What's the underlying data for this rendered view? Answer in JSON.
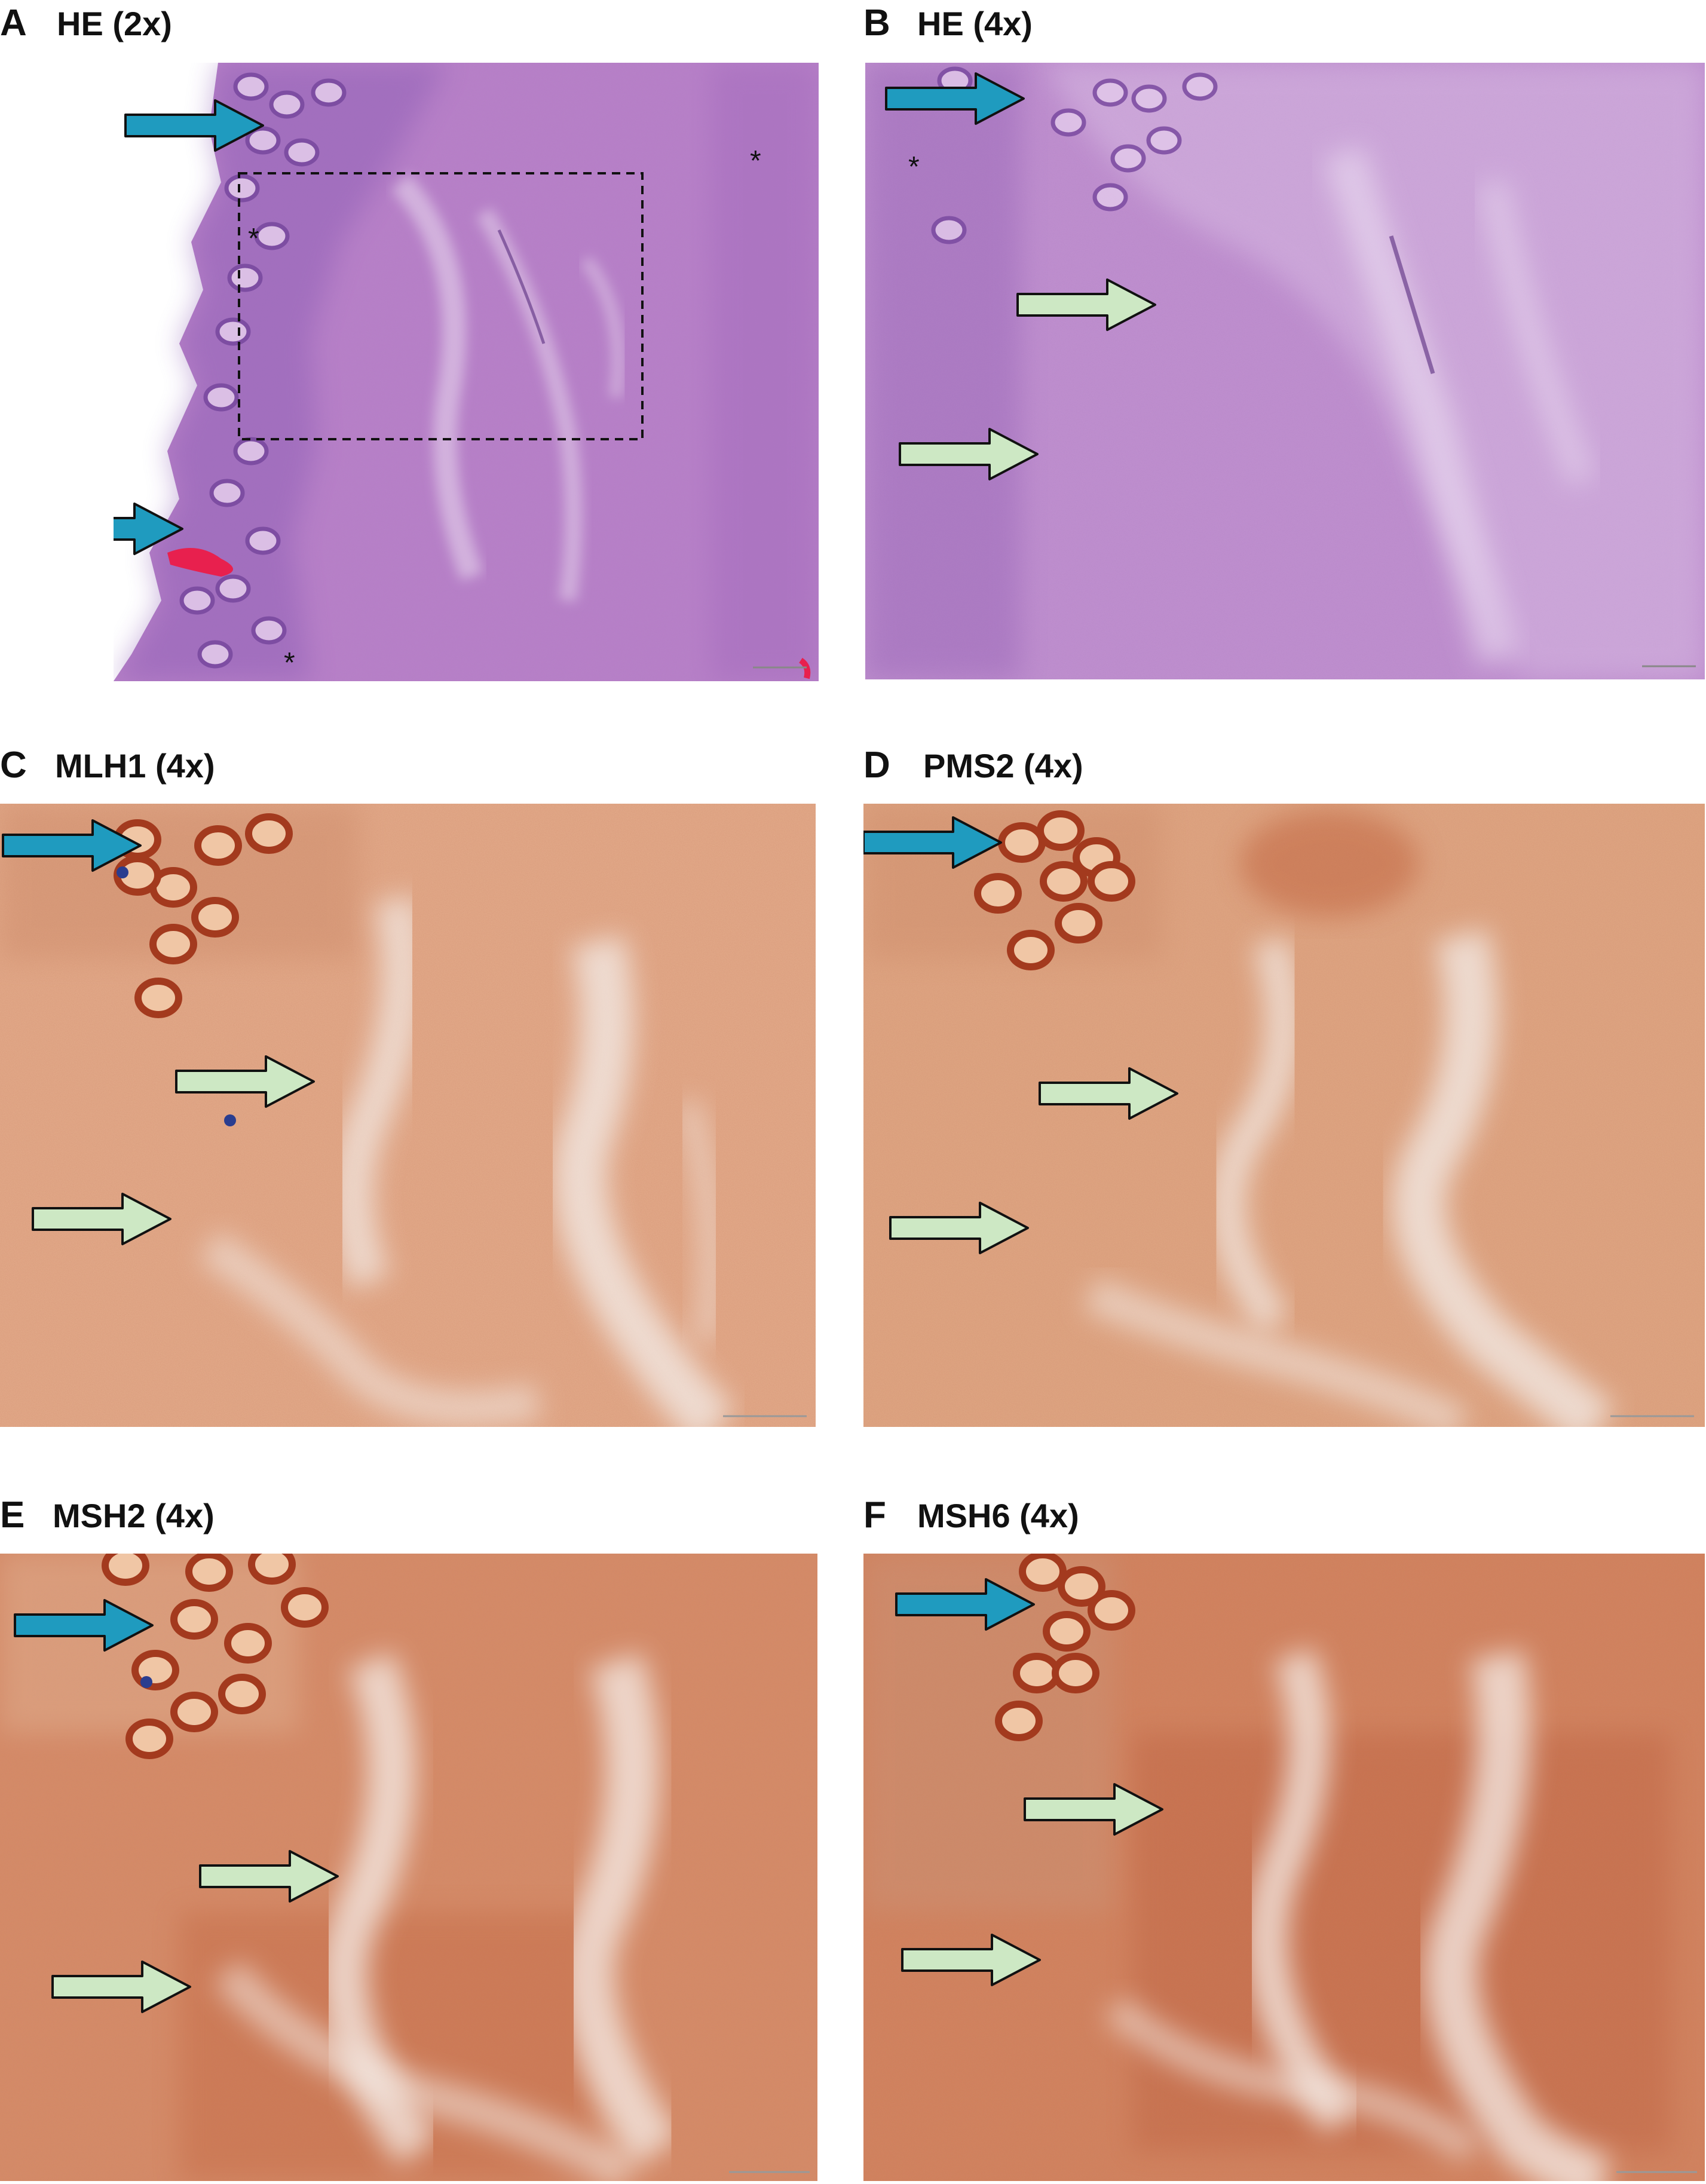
{
  "panels": [
    {
      "letter": "A",
      "title": "HE (2x)",
      "stain": "he",
      "asterisks": [
        "*",
        "*",
        "*"
      ]
    },
    {
      "letter": "B",
      "title": "HE (4x)",
      "stain": "he",
      "asterisks": [
        "*"
      ]
    },
    {
      "letter": "C",
      "title": "MLH1 (4x)",
      "stain": "ihc"
    },
    {
      "letter": "D",
      "title": "PMS2 (4x)",
      "stain": "ihc"
    },
    {
      "letter": "E",
      "title": "MSH2 (4x)",
      "stain": "ihc-strong"
    },
    {
      "letter": "F",
      "title": "MSH6 (4x)",
      "stain": "ihc-strong"
    }
  ],
  "colors": {
    "he_tissue": "#b97fc8",
    "he_dark": "#8a5cb4",
    "ihc_tissue": "#e4ad8c",
    "ihc_strong": "#cf7d5a",
    "blue_arrow": "#1f9bbf",
    "green_arrow": "#cde8c4",
    "stroma": "#f3ece8"
  },
  "icons": [
    "blue-arrow-icon",
    "green-arrow-icon",
    "dashed-box"
  ]
}
